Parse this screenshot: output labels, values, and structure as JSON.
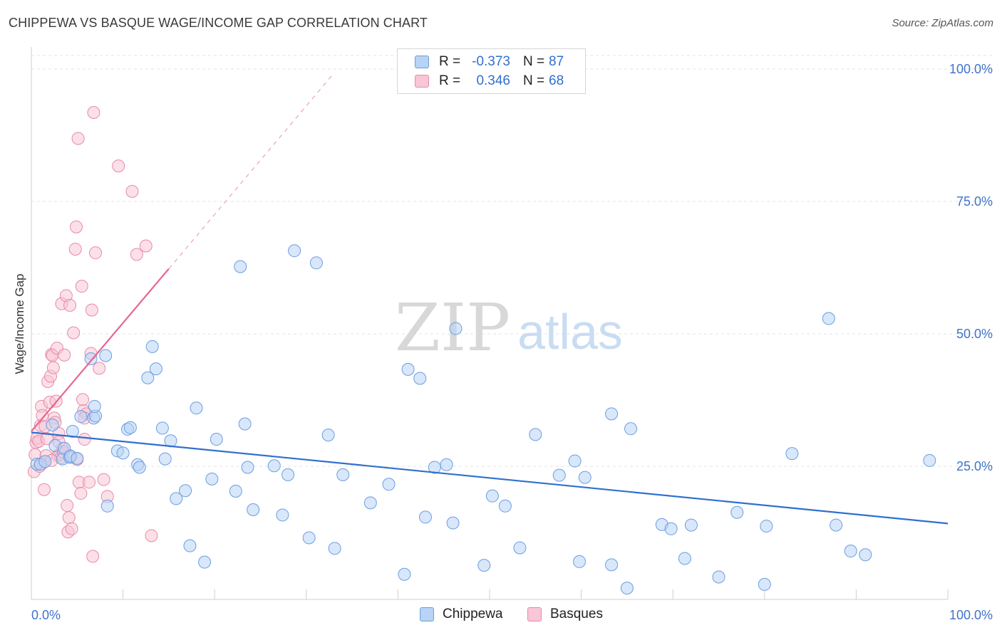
{
  "title": "CHIPPEWA VS BASQUE WAGE/INCOME GAP CORRELATION CHART",
  "source": "Source: ZipAtlas.com",
  "watermark": {
    "zip": "ZIP",
    "atlas": "atlas"
  },
  "legend": {
    "series": [
      {
        "name": "Chippewa",
        "r_label": "R =",
        "r_value": "-0.373",
        "n_label": "N =",
        "n_value": "87",
        "fill": "#b8d3f5",
        "stroke": "#6a9ee0"
      },
      {
        "name": "Basques",
        "r_label": "R =",
        "r_value": "0.346",
        "n_label": "N =",
        "n_value": "68",
        "fill": "#f8c6d6",
        "stroke": "#e88aa8"
      }
    ]
  },
  "colors": {
    "chippewa_line": "#2f6fd0",
    "basques_line": "#e8678f",
    "grid": "#e3e3e3",
    "axis_label": "#3d74cc"
  },
  "chart_data": {
    "type": "scatter",
    "title": "CHIPPEWA VS BASQUE WAGE/INCOME GAP CORRELATION CHART",
    "xlabel": "",
    "ylabel": "Wage/Income Gap",
    "xlim": [
      0,
      100
    ],
    "ylim": [
      0,
      105
    ],
    "x_tick_labels": [
      {
        "value": 0,
        "label": "0.0%"
      },
      {
        "value": 100,
        "label": "100.0%"
      }
    ],
    "y_tick_labels": [
      {
        "value": 25,
        "label": "25.0%"
      },
      {
        "value": 50,
        "label": "50.0%"
      },
      {
        "value": 75,
        "label": "75.0%"
      },
      {
        "value": 100,
        "label": "100.0%"
      }
    ],
    "gridlines_y": [
      25,
      50,
      75,
      100
    ],
    "series": [
      {
        "name": "Chippewa",
        "points": [
          [
            0.6,
            25.4
          ],
          [
            1.0,
            25.4
          ],
          [
            1.5,
            25.9
          ],
          [
            2.3,
            32.8
          ],
          [
            2.6,
            28.9
          ],
          [
            3.4,
            26.4
          ],
          [
            3.6,
            28.4
          ],
          [
            4.2,
            26.7
          ],
          [
            4.3,
            26.9
          ],
          [
            4.5,
            31.6
          ],
          [
            5.0,
            26.5
          ],
          [
            5.4,
            34.4
          ],
          [
            6.8,
            34.1
          ],
          [
            7.0,
            34.5
          ],
          [
            6.5,
            45.3
          ],
          [
            6.9,
            36.3
          ],
          [
            8.1,
            45.9
          ],
          [
            8.3,
            17.5
          ],
          [
            9.4,
            27.9
          ],
          [
            10.0,
            27.5
          ],
          [
            10.5,
            32.0
          ],
          [
            10.8,
            32.3
          ],
          [
            11.6,
            25.3
          ],
          [
            11.8,
            24.8
          ],
          [
            12.7,
            41.7
          ],
          [
            13.2,
            47.6
          ],
          [
            13.6,
            43.4
          ],
          [
            14.3,
            32.2
          ],
          [
            14.6,
            26.4
          ],
          [
            15.2,
            29.8
          ],
          [
            15.8,
            18.9
          ],
          [
            16.8,
            20.4
          ],
          [
            17.3,
            10.0
          ],
          [
            18.0,
            36.0
          ],
          [
            18.9,
            6.9
          ],
          [
            19.7,
            22.6
          ],
          [
            20.2,
            30.1
          ],
          [
            22.3,
            20.3
          ],
          [
            22.8,
            62.7
          ],
          [
            23.3,
            33.0
          ],
          [
            23.6,
            24.8
          ],
          [
            24.2,
            16.8
          ],
          [
            26.5,
            25.1
          ],
          [
            27.4,
            15.8
          ],
          [
            28.0,
            23.4
          ],
          [
            28.7,
            65.7
          ],
          [
            30.3,
            11.5
          ],
          [
            31.1,
            63.4
          ],
          [
            32.4,
            30.9
          ],
          [
            33.1,
            9.5
          ],
          [
            34.0,
            23.4
          ],
          [
            37.0,
            18.1
          ],
          [
            39.0,
            21.6
          ],
          [
            40.7,
            4.6
          ],
          [
            41.1,
            43.3
          ],
          [
            42.4,
            41.6
          ],
          [
            43.0,
            15.4
          ],
          [
            44.0,
            24.8
          ],
          [
            45.3,
            25.3
          ],
          [
            46.0,
            14.3
          ],
          [
            46.3,
            51.0
          ],
          [
            49.4,
            6.3
          ],
          [
            50.3,
            19.4
          ],
          [
            51.7,
            17.5
          ],
          [
            53.3,
            9.6
          ],
          [
            55.0,
            31.0
          ],
          [
            57.6,
            23.3
          ],
          [
            59.3,
            26.0
          ],
          [
            59.8,
            7.0
          ],
          [
            60.4,
            22.9
          ],
          [
            63.3,
            6.4
          ],
          [
            63.3,
            34.9
          ],
          [
            65.0,
            2.0
          ],
          [
            65.4,
            32.1
          ],
          [
            68.8,
            14.0
          ],
          [
            69.8,
            13.2
          ],
          [
            71.3,
            7.6
          ],
          [
            72.0,
            13.9
          ],
          [
            75.0,
            4.1
          ],
          [
            77.0,
            16.3
          ],
          [
            80.0,
            2.7
          ],
          [
            80.2,
            13.7
          ],
          [
            83.0,
            27.4
          ],
          [
            87.0,
            52.9
          ],
          [
            87.8,
            13.9
          ],
          [
            89.4,
            9.0
          ],
          [
            91.0,
            8.3
          ],
          [
            98.0,
            26.1
          ]
        ],
        "trendline": {
          "x": [
            0,
            100
          ],
          "y": [
            31.4,
            14.2
          ],
          "style": "solid"
        }
      },
      {
        "name": "Basques",
        "points": [
          [
            0.3,
            24.0
          ],
          [
            0.4,
            27.2
          ],
          [
            0.5,
            29.5
          ],
          [
            0.6,
            30.3
          ],
          [
            0.8,
            29.7
          ],
          [
            1.0,
            32.7
          ],
          [
            1.1,
            36.3
          ],
          [
            1.2,
            34.6
          ],
          [
            1.3,
            25.7
          ],
          [
            1.4,
            20.6
          ],
          [
            1.5,
            32.5
          ],
          [
            1.6,
            27.0
          ],
          [
            1.8,
            41.0
          ],
          [
            2.0,
            37.1
          ],
          [
            2.1,
            42.0
          ],
          [
            2.2,
            46.1
          ],
          [
            2.3,
            45.9
          ],
          [
            2.4,
            43.6
          ],
          [
            2.5,
            34.1
          ],
          [
            2.6,
            33.3
          ],
          [
            2.7,
            37.3
          ],
          [
            2.8,
            47.3
          ],
          [
            2.9,
            27.0
          ],
          [
            3.0,
            31.2
          ],
          [
            3.1,
            27.3
          ],
          [
            3.2,
            26.6
          ],
          [
            3.3,
            55.7
          ],
          [
            3.4,
            28.4
          ],
          [
            3.5,
            27.7
          ],
          [
            3.6,
            46.0
          ],
          [
            3.8,
            57.2
          ],
          [
            3.9,
            17.6
          ],
          [
            4.0,
            12.6
          ],
          [
            4.1,
            15.3
          ],
          [
            4.2,
            55.4
          ],
          [
            4.4,
            13.2
          ],
          [
            4.6,
            50.2
          ],
          [
            4.8,
            66.0
          ],
          [
            4.9,
            70.2
          ],
          [
            5.0,
            26.3
          ],
          [
            5.1,
            86.9
          ],
          [
            5.2,
            22.0
          ],
          [
            5.4,
            19.9
          ],
          [
            5.5,
            59.0
          ],
          [
            5.6,
            37.6
          ],
          [
            5.7,
            35.5
          ],
          [
            5.8,
            30.1
          ],
          [
            6.0,
            34.9
          ],
          [
            6.3,
            22.0
          ],
          [
            6.5,
            46.3
          ],
          [
            6.6,
            54.5
          ],
          [
            6.7,
            8.0
          ],
          [
            6.8,
            91.8
          ],
          [
            7.0,
            65.3
          ],
          [
            7.4,
            43.5
          ],
          [
            7.9,
            22.5
          ],
          [
            8.3,
            19.3
          ],
          [
            9.5,
            81.7
          ],
          [
            11.0,
            76.9
          ],
          [
            11.5,
            65.0
          ],
          [
            12.5,
            66.6
          ],
          [
            13.1,
            11.9
          ],
          [
            0.9,
            25.0
          ],
          [
            1.7,
            30.2
          ],
          [
            2.2,
            26.1
          ],
          [
            3.0,
            29.6
          ],
          [
            4.2,
            27.0
          ],
          [
            5.8,
            34.1
          ]
        ],
        "trendline": {
          "x": [
            0,
            15
          ],
          "y": [
            31.6,
            62.3
          ],
          "style": "solid",
          "extension": {
            "x": [
              15,
              33
            ],
            "y": [
              62.3,
              99.2
            ],
            "style": "dashed"
          }
        }
      }
    ]
  }
}
